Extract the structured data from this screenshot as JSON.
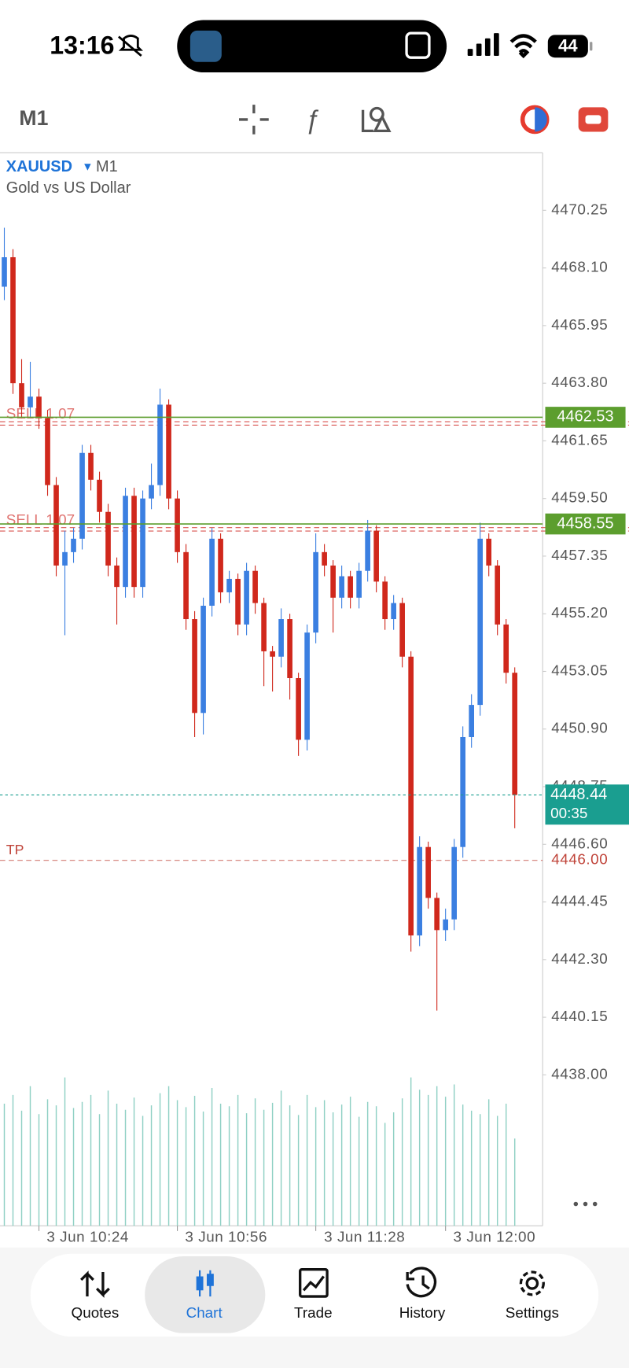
{
  "status_bar": {
    "time": "13:16",
    "battery": "44"
  },
  "toolbar": {
    "timeframe": "M1"
  },
  "chart_data": {
    "type": "candlestick",
    "symbol": "XAUUSD",
    "timeframe": "M1",
    "title": "Gold vs US Dollar",
    "categories": [
      null,
      null,
      null,
      null,
      "3 Jun 10:24",
      null,
      null,
      null,
      null,
      null,
      null,
      null,
      null,
      null,
      null,
      null,
      null,
      null,
      null,
      null,
      "3 Jun 10:56",
      null,
      null,
      null,
      null,
      null,
      null,
      null,
      null,
      null,
      null,
      null,
      null,
      null,
      null,
      null,
      "3 Jun 11:28",
      null,
      null,
      null,
      null,
      null,
      null,
      null,
      null,
      null,
      null,
      null,
      null,
      null,
      null,
      "3 Jun 12:00",
      null,
      null,
      null,
      null,
      null,
      null,
      null,
      null
    ],
    "open": [
      4467.4,
      4468.5,
      4463.8,
      4462.9,
      4463.3,
      4462.5,
      4460.0,
      4457.0,
      4457.5,
      4458.0,
      4461.2,
      4460.2,
      4459.0,
      4457.0,
      4456.2,
      4459.6,
      4456.2,
      4459.5,
      4460.0,
      4463.0,
      4459.5,
      4457.5,
      4455.0,
      4451.5,
      4455.5,
      4458.0,
      4456.0,
      4456.5,
      4454.8,
      4456.8,
      4455.6,
      4453.8,
      4453.6,
      4455.0,
      4452.8,
      4450.5,
      4454.5,
      4457.5,
      4457.0,
      4455.8,
      4456.6,
      4455.8,
      4456.8,
      4458.3,
      4456.4,
      4455.0,
      4455.6,
      4453.6,
      4443.2,
      4446.5,
      4444.6,
      4443.4,
      4443.8,
      4446.5,
      4450.6,
      4451.8,
      4458.0,
      4457.0,
      4454.8,
      4453.0
    ],
    "high": [
      4469.6,
      4468.8,
      4464.7,
      4464.6,
      4463.6,
      4462.8,
      4460.3,
      4458.3,
      4458.4,
      4461.5,
      4461.5,
      4460.5,
      4459.3,
      4457.3,
      4459.9,
      4459.9,
      4459.8,
      4460.8,
      4463.6,
      4463.2,
      4459.8,
      4457.8,
      4455.3,
      4455.8,
      4458.4,
      4458.2,
      4456.8,
      4456.7,
      4457.1,
      4457.0,
      4455.8,
      4454.0,
      4455.4,
      4455.2,
      4453.0,
      4454.8,
      4458.2,
      4457.8,
      4457.2,
      4457.0,
      4456.8,
      4457.1,
      4458.7,
      4458.5,
      4456.6,
      4455.9,
      4455.8,
      4453.8,
      4446.9,
      4446.7,
      4444.8,
      4444.2,
      4446.8,
      4451.0,
      4452.2,
      4458.6,
      4458.2,
      4457.2,
      4455.0,
      4453.2
    ],
    "low": [
      4466.9,
      4463.4,
      4462.5,
      4462.5,
      4462.1,
      4459.6,
      4456.6,
      4454.4,
      4457.1,
      4457.6,
      4459.8,
      4458.6,
      4456.6,
      4454.8,
      4455.8,
      4455.8,
      4455.8,
      4459.1,
      4459.6,
      4459.1,
      4457.1,
      4454.6,
      4450.6,
      4450.7,
      4455.1,
      4455.6,
      4455.6,
      4454.4,
      4454.4,
      4455.2,
      4452.5,
      4452.3,
      4453.2,
      4452.0,
      4449.9,
      4450.1,
      4454.1,
      4456.6,
      4454.5,
      4455.4,
      4455.4,
      4455.4,
      4456.4,
      4456.0,
      4454.6,
      4454.6,
      4453.2,
      4442.6,
      4442.8,
      4444.2,
      4440.4,
      4443.0,
      4443.4,
      4446.1,
      4450.2,
      4451.4,
      4456.6,
      4454.4,
      4452.6,
      4447.2
    ],
    "close": [
      4468.5,
      4463.8,
      4462.9,
      4463.3,
      4462.5,
      4460.0,
      4457.0,
      4457.5,
      4458.0,
      4461.2,
      4460.2,
      4459.0,
      4457.0,
      4456.2,
      4459.6,
      4456.2,
      4459.5,
      4460.0,
      4463.0,
      4459.5,
      4457.5,
      4455.0,
      4451.5,
      4455.5,
      4458.0,
      4456.0,
      4456.5,
      4454.8,
      4456.8,
      4455.6,
      4453.8,
      4453.6,
      4455.0,
      4452.8,
      4450.5,
      4454.5,
      4457.5,
      4457.0,
      4455.8,
      4456.6,
      4455.8,
      4456.8,
      4458.3,
      4456.4,
      4455.0,
      4455.6,
      4453.6,
      4443.2,
      4446.5,
      4444.6,
      4443.4,
      4443.8,
      4446.5,
      4450.6,
      4451.8,
      4458.0,
      4457.0,
      4454.8,
      4453.0,
      4448.44
    ],
    "volume": [
      140,
      150,
      132,
      160,
      128,
      145,
      138,
      170,
      135,
      142,
      150,
      128,
      155,
      140,
      133,
      147,
      126,
      138,
      152,
      160,
      144,
      136,
      149,
      131,
      158,
      140,
      137,
      150,
      129,
      146,
      133,
      141,
      155,
      138,
      127,
      150,
      136,
      144,
      130,
      139,
      148,
      125,
      142,
      137,
      118,
      130,
      146,
      170,
      156,
      150,
      160,
      148,
      162,
      139,
      132,
      128,
      145,
      126,
      140,
      100
    ],
    "up_color": "#3b7fe1",
    "down_color": "#d0281c",
    "volume_color": "#8fd0c4",
    "ylim": [
      4432.37,
      4472.4
    ],
    "yticks": [
      {
        "value": 4470.25,
        "label": "4470.25"
      },
      {
        "value": 4468.1,
        "label": "4468.10"
      },
      {
        "value": 4465.95,
        "label": "4465.95"
      },
      {
        "value": 4463.8,
        "label": "4463.80"
      },
      {
        "value": 4461.65,
        "label": "4461.65"
      },
      {
        "value": 4459.5,
        "label": "4459.50"
      },
      {
        "value": 4457.35,
        "label": "4457.35"
      },
      {
        "value": 4455.2,
        "label": "4455.20"
      },
      {
        "value": 4453.05,
        "label": "4453.05"
      },
      {
        "value": 4450.9,
        "label": "4450.90"
      },
      {
        "value": 4448.75,
        "label": "4448.75"
      },
      {
        "value": 4446.6,
        "label": "4446.60"
      },
      {
        "value": 4444.45,
        "label": "4444.45"
      },
      {
        "value": 4442.3,
        "label": "4442.30"
      },
      {
        "value": 4440.15,
        "label": "4440.15"
      },
      {
        "value": 4438.0,
        "label": "4438.00"
      }
    ],
    "orders": [
      {
        "name": "SELL 1.07",
        "value": 4462.3
      },
      {
        "name": "SELL 1.07",
        "value": 4458.35
      }
    ],
    "levels": [
      {
        "value": 4462.53,
        "color": "#5c9e2e"
      },
      {
        "value": 4458.55,
        "color": "#5c9e2e"
      }
    ],
    "take_profit": {
      "name": "TP",
      "value": 4446,
      "label": "4446.00",
      "color": "#c0443a"
    },
    "current": {
      "value": 4448.44,
      "countdown": "00:35",
      "color": "#1a9e90"
    }
  },
  "nav": {
    "items": [
      "Quotes",
      "Chart",
      "Trade",
      "History",
      "Settings"
    ],
    "active": 1
  }
}
